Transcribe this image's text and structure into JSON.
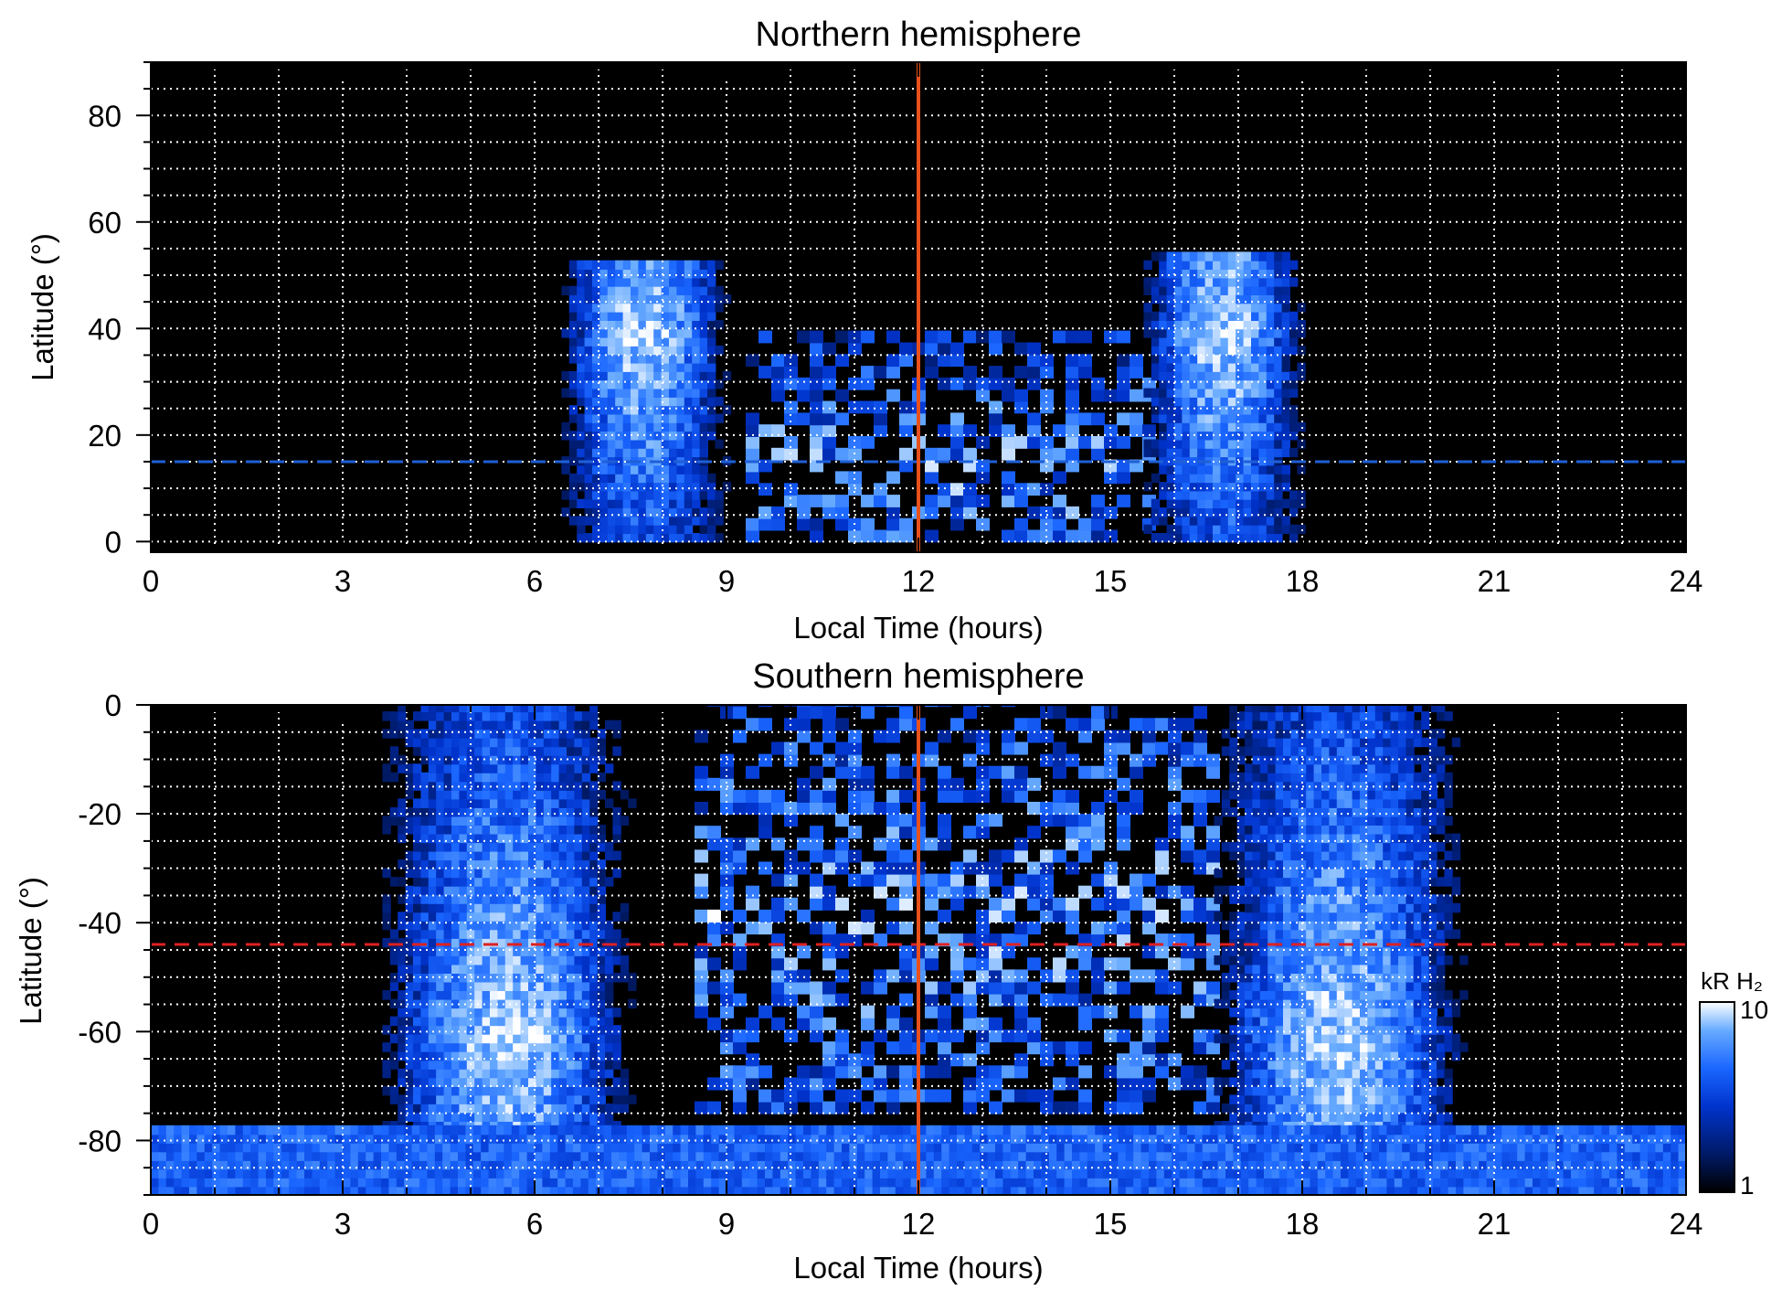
{
  "chart_data": [
    {
      "type": "heatmap",
      "title": "Northern hemisphere",
      "xlabel": "Local Time (hours)",
      "ylabel": "Latitude (°)",
      "xlim": [
        0,
        24
      ],
      "ylim": [
        -2,
        90
      ],
      "xticks": [
        "0",
        "3",
        "6",
        "9",
        "12",
        "15",
        "18",
        "21",
        "24"
      ],
      "yticks": [
        "0",
        "20",
        "40",
        "60",
        "80"
      ],
      "grid": true,
      "background": "#000000",
      "noon_line": {
        "x": 12,
        "color": "#e8501c"
      },
      "reference_latitude": {
        "y": 15,
        "color": "#1f5fd6",
        "style": "dashed"
      },
      "emission_regions": [
        {
          "name": "dawn arc",
          "x_range": [
            6.3,
            9.0
          ],
          "lat_range": [
            0,
            52
          ],
          "peak_lat": 38
        },
        {
          "name": "noon patches",
          "x_range": [
            9.3,
            15.5
          ],
          "lat_range": [
            0,
            38
          ],
          "peak_lat": 12
        },
        {
          "name": "dusk arc",
          "x_range": [
            15.4,
            18.0
          ],
          "lat_range": [
            0,
            53
          ],
          "peak_lat": 38
        }
      ]
    },
    {
      "type": "heatmap",
      "title": "Southern hemisphere",
      "xlabel": "Local Time (hours)",
      "ylabel": "Latitude (°)",
      "xlim": [
        0,
        24
      ],
      "ylim": [
        -90,
        0
      ],
      "xticks": [
        "0",
        "3",
        "6",
        "9",
        "12",
        "15",
        "18",
        "21",
        "24"
      ],
      "yticks": [
        "0",
        "-20",
        "-40",
        "-60",
        "-80"
      ],
      "grid": true,
      "background": "#000000",
      "noon_line": {
        "x": 12,
        "color": "#e8501c"
      },
      "reference_latitude": {
        "y": -44,
        "color": "#e02020",
        "style": "dashed"
      },
      "emission_regions": [
        {
          "name": "dawn arc",
          "x_range": [
            3.5,
            7.5
          ],
          "lat_range": [
            -78,
            0
          ],
          "peak_lat": -62
        },
        {
          "name": "noon patches",
          "x_range": [
            8.5,
            16.5
          ],
          "lat_range": [
            -75,
            0
          ],
          "peak_lat": -40
        },
        {
          "name": "dusk arc",
          "x_range": [
            16.5,
            20.5
          ],
          "lat_range": [
            -78,
            0
          ],
          "peak_lat": -62
        },
        {
          "name": "polar band",
          "x_range": [
            0,
            24
          ],
          "lat_range": [
            -90,
            -78
          ],
          "peak_lat": -86
        }
      ]
    }
  ],
  "colorbar": {
    "label": "kR H₂",
    "min_label": "1",
    "max_label": "10",
    "scale": "log",
    "colors": [
      "#000000",
      "#001a66",
      "#0033cc",
      "#1a66ff",
      "#66aaff",
      "#ffffff"
    ]
  }
}
